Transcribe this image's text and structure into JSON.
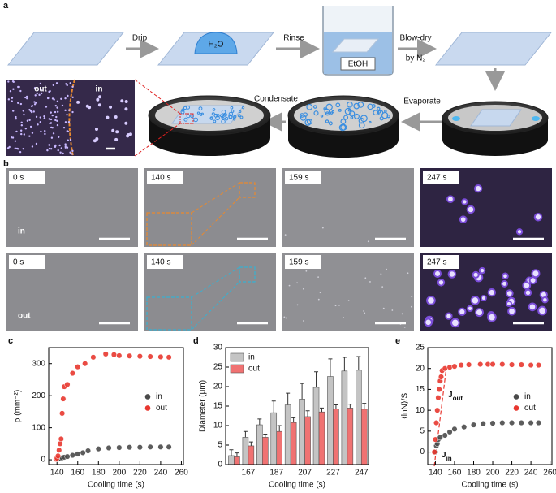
{
  "panel_a": {
    "label": "a",
    "steps": [
      "Drip",
      "Rinse",
      "Blow-dry"
    ],
    "blow_dry_note": "by N₂",
    "water": "H₂O",
    "solvent": "EtOH",
    "condensate": "Condensate",
    "evaporate": "Evaporate",
    "region_out": "out",
    "region_in": "in"
  },
  "panel_b": {
    "label": "b",
    "times_in": [
      "0 s",
      "140 s",
      "159 s",
      "247 s"
    ],
    "times_out": [
      "0 s",
      "140 s",
      "159 s",
      "247 s"
    ],
    "row_in": "in",
    "row_out": "out"
  },
  "chart_data": [
    {
      "type": "scatter",
      "label": "c",
      "xlabel": "Cooling time (s)",
      "ylabel": "ρ (mm⁻²)",
      "xlim": [
        132,
        262
      ],
      "ylim": [
        -15,
        350
      ],
      "xticks": [
        140,
        160,
        180,
        200,
        220,
        240,
        260
      ],
      "yticks": [
        0,
        100,
        200,
        300
      ],
      "legend": "center right",
      "series": [
        {
          "name": "in",
          "color": "#4a4a4a",
          "x": [
            140,
            141,
            142,
            143,
            145,
            147,
            150,
            155,
            160,
            165,
            170,
            180,
            190,
            200,
            210,
            220,
            230,
            240,
            248
          ],
          "values": [
            2,
            3,
            4,
            5,
            6,
            8,
            10,
            14,
            18,
            22,
            28,
            34,
            37,
            38,
            39,
            39,
            40,
            40,
            40
          ]
        },
        {
          "name": "out",
          "color": "#e8372f",
          "x": [
            139,
            140,
            141,
            142,
            143,
            144,
            145,
            146,
            147,
            150,
            155,
            160,
            167,
            175,
            187,
            195,
            200,
            210,
            220,
            230,
            240,
            248
          ],
          "values": [
            2,
            5,
            12,
            30,
            50,
            65,
            145,
            190,
            228,
            235,
            270,
            290,
            300,
            320,
            330,
            328,
            325,
            324,
            323,
            322,
            321,
            320
          ]
        }
      ]
    },
    {
      "type": "bar",
      "label": "d",
      "xlabel": "Cooling time (s)",
      "ylabel": "Diameter (μm)",
      "xlim": [
        151,
        252
      ],
      "ylim": [
        0,
        30
      ],
      "xticks": [
        167,
        187,
        207,
        227,
        247
      ],
      "yticks": [
        0,
        5,
        10,
        15,
        20,
        25,
        30
      ],
      "legend": "upper left",
      "x": [
        157,
        167,
        177,
        187,
        197,
        207,
        217,
        227,
        237,
        247
      ],
      "series": [
        {
          "name": "in",
          "color": "#c4c4c4",
          "values": [
            2.3,
            7,
            10.2,
            13.3,
            15.3,
            16.8,
            19.8,
            22.6,
            24,
            24.2
          ],
          "errors": [
            1.5,
            1.5,
            1.5,
            3,
            3,
            4,
            4,
            4.5,
            3.5,
            3.5
          ]
        },
        {
          "name": "out",
          "color": "#f07272",
          "values": [
            2,
            4.8,
            7,
            8.5,
            10.8,
            12.3,
            13.5,
            14.3,
            14.5,
            14.2
          ],
          "errors": [
            1,
            1,
            0.8,
            1.5,
            1.2,
            1.5,
            1,
            1,
            1,
            1.5
          ]
        }
      ]
    },
    {
      "type": "scatter",
      "label": "e",
      "xlabel": "Cooling time (s)",
      "ylabel": "⟨lnN⟩/S",
      "xlim": [
        132,
        262
      ],
      "ylim": [
        -3,
        25
      ],
      "xticks": [
        140,
        160,
        180,
        200,
        220,
        240,
        260
      ],
      "yticks": [
        0,
        5,
        10,
        15,
        20,
        25
      ],
      "legend": "center right",
      "annotations": [
        {
          "text": "J",
          "sub": "out"
        },
        {
          "text": "J",
          "sub": "in"
        }
      ],
      "series": [
        {
          "name": "in",
          "color": "#4a4a4a",
          "x": [
            140,
            141,
            142,
            143,
            145,
            150,
            155,
            160,
            170,
            180,
            190,
            200,
            210,
            220,
            230,
            240,
            248
          ],
          "values": [
            0,
            1.5,
            2,
            3,
            3.5,
            4,
            4.8,
            5.5,
            6,
            6.5,
            6.8,
            6.9,
            7,
            7,
            7,
            7,
            7
          ]
        },
        {
          "name": "out",
          "color": "#e8372f",
          "x": [
            139,
            140,
            141,
            142,
            143,
            144,
            145,
            146,
            147,
            150,
            155,
            160,
            167,
            175,
            187,
            195,
            200,
            210,
            220,
            230,
            240,
            248
          ],
          "values": [
            0,
            3,
            7,
            10,
            13,
            15,
            17,
            18,
            19.5,
            20,
            20.3,
            20.5,
            20.8,
            20.9,
            21,
            21,
            21,
            21,
            20.9,
            20.9,
            20.8,
            20.8
          ]
        }
      ]
    }
  ]
}
